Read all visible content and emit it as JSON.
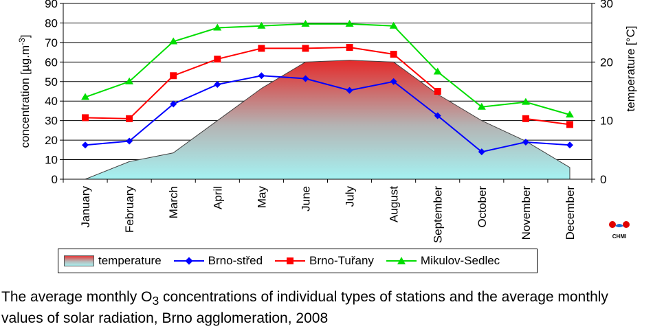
{
  "chart_data": {
    "type": "line",
    "categories": [
      "January",
      "February",
      "March",
      "April",
      "May",
      "June",
      "July",
      "August",
      "September",
      "October",
      "November",
      "December"
    ],
    "y_left": {
      "label": "concentration  [µg.m-3]",
      "range": [
        0,
        90
      ],
      "ticks": [
        0,
        10,
        20,
        30,
        40,
        50,
        60,
        70,
        80,
        90
      ]
    },
    "y_right": {
      "label": "temperature [°C]",
      "range": [
        0,
        30
      ],
      "ticks": [
        0,
        10,
        20,
        30
      ]
    },
    "area": {
      "name": "temperature",
      "axis": "right",
      "values": [
        0,
        3,
        4.5,
        10,
        15.5,
        20,
        20.3,
        20,
        14.5,
        10,
        6.5,
        2
      ]
    },
    "series": [
      {
        "name": "Brno-střed",
        "color": "#0000ff",
        "marker": "diamond",
        "values": [
          17.5,
          19.5,
          38.5,
          48.5,
          53,
          51.5,
          45.5,
          50,
          32.5,
          14,
          19,
          17.5
        ]
      },
      {
        "name": "Brno-Tuřany",
        "color": "#ff0000",
        "marker": "square",
        "values": [
          31.5,
          31,
          53,
          61.5,
          67,
          67,
          67.5,
          64,
          45,
          null,
          31,
          28
        ]
      },
      {
        "name": "Mikulov-Sedlec",
        "color": "#00dd00",
        "marker": "triangle",
        "values": [
          42,
          50,
          70.5,
          77.5,
          78.5,
          79.5,
          79.5,
          78.5,
          55,
          37,
          39.5,
          33
        ]
      }
    ],
    "grid": true,
    "legend_position": "bottom"
  },
  "caption": {
    "pre": "The average monthly O",
    "sub": "3",
    "post": " concentrations of individual types of stations and the average monthly values of solar radiation, Brno agglomeration, 2008"
  },
  "logo_text": "CHMI"
}
